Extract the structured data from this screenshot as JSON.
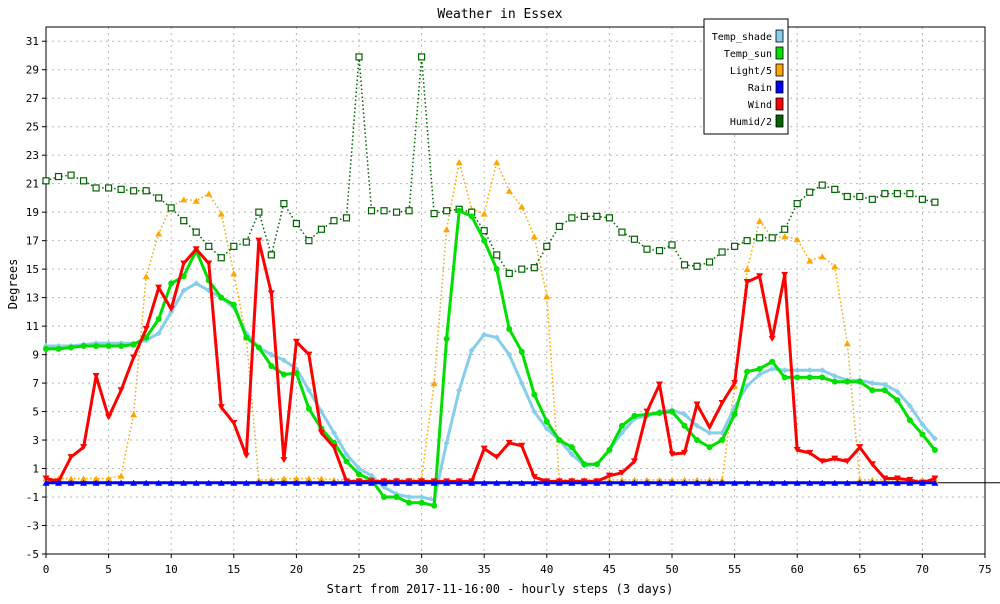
{
  "chart_data": {
    "type": "line",
    "title": "Weather in Essex",
    "xlabel": "Start from 2017-11-16:00 - hourly steps (3 days)",
    "ylabel": "Degrees",
    "xlim": [
      0,
      75
    ],
    "ylim": [
      -5,
      32
    ],
    "xticks": [
      "0",
      "5",
      "10",
      "15",
      "20",
      "25",
      "30",
      "35",
      "40",
      "45",
      "50",
      "55",
      "60",
      "65",
      "70",
      "75"
    ],
    "yticks": [
      "-5",
      "-3",
      "-1",
      "1",
      "3",
      "5",
      "7",
      "9",
      "11",
      "13",
      "15",
      "17",
      "19",
      "21",
      "23",
      "25",
      "27",
      "29",
      "31"
    ],
    "grid": true,
    "legend_position": "top-right",
    "series": [
      {
        "name": "Temp_shade",
        "color": "#87ceeb",
        "style": "solid",
        "marker": "diamond",
        "values": [
          9.6,
          9.6,
          9.6,
          9.7,
          9.8,
          9.8,
          9.8,
          9.8,
          10.0,
          10.5,
          12.0,
          13.5,
          14.0,
          13.5,
          13.0,
          12.3,
          10.5,
          9.5,
          9.0,
          8.6,
          8.0,
          6.5,
          5.0,
          3.5,
          2.0,
          1.0,
          0.5,
          -0.3,
          -0.8,
          -1.0,
          -1.0,
          -1.2,
          2.8,
          6.5,
          9.3,
          10.4,
          10.2,
          9.0,
          7.0,
          5.0,
          3.8,
          3.0,
          2.0,
          1.2,
          1.3,
          2.3,
          3.5,
          4.5,
          4.7,
          5.0,
          5.1,
          4.8,
          4.0,
          3.5,
          3.5,
          5.3,
          6.8,
          7.6,
          8.0,
          7.9,
          7.9,
          7.9,
          7.9,
          7.5,
          7.2,
          7.2,
          7.0,
          6.9,
          6.4,
          5.4,
          4.1,
          3.1
        ]
      },
      {
        "name": "Temp_sun",
        "color": "#00e000",
        "style": "solid",
        "marker": "circle",
        "values": [
          9.4,
          9.4,
          9.5,
          9.6,
          9.6,
          9.6,
          9.6,
          9.7,
          10.2,
          11.5,
          14.0,
          14.5,
          16.3,
          14.2,
          13.0,
          12.5,
          10.2,
          9.5,
          8.2,
          7.6,
          7.7,
          5.2,
          3.8,
          2.8,
          1.5,
          0.6,
          0.2,
          -1.0,
          -1.0,
          -1.4,
          -1.4,
          -1.6,
          10.1,
          19.1,
          18.7,
          17.0,
          15.0,
          10.8,
          9.2,
          6.2,
          4.3,
          3.0,
          2.5,
          1.3,
          1.3,
          2.3,
          4.0,
          4.7,
          4.8,
          4.9,
          5.0,
          4.0,
          3.0,
          2.5,
          3.0,
          4.8,
          7.8,
          8.0,
          8.5,
          7.4,
          7.4,
          7.4,
          7.4,
          7.1,
          7.1,
          7.1,
          6.5,
          6.5,
          5.8,
          4.4,
          3.4,
          2.3
        ]
      },
      {
        "name": "Light/5",
        "color": "#ffa500",
        "style": "dotted",
        "marker": "triangle-up",
        "values": [
          0.3,
          0.3,
          0.3,
          0.3,
          0.3,
          0.3,
          0.5,
          4.8,
          14.5,
          17.5,
          19.4,
          19.9,
          19.8,
          20.3,
          18.9,
          14.7,
          10.2,
          0.2,
          0.2,
          0.3,
          0.3,
          0.3,
          0.3,
          0.2,
          0.2,
          0.2,
          0.2,
          0.2,
          0.2,
          0.2,
          0.3,
          7.0,
          17.8,
          22.5,
          19.2,
          18.9,
          22.5,
          20.5,
          19.4,
          17.3,
          13.1,
          0.2,
          0.2,
          0.2,
          0.2,
          0.2,
          0.2,
          0.2,
          0.2,
          0.2,
          0.2,
          0.2,
          0.2,
          0.2,
          0.2,
          6.8,
          15.0,
          18.4,
          17.2,
          17.3,
          17.1,
          15.6,
          15.9,
          15.2,
          9.8,
          0.2,
          0.2,
          0.2,
          0.2,
          0.2,
          0.2,
          0.2
        ]
      },
      {
        "name": "Rain",
        "color": "#0000ff",
        "style": "solid",
        "marker": "triangle-up",
        "values": [
          0,
          0,
          0,
          0,
          0,
          0,
          0,
          0,
          0,
          0,
          0,
          0,
          0,
          0,
          0,
          0,
          0,
          0,
          0,
          0,
          0,
          0,
          0,
          0,
          0,
          0,
          0,
          0,
          0,
          0,
          0,
          0,
          0,
          0,
          0,
          0,
          0,
          0,
          0,
          0,
          0,
          0,
          0,
          0,
          0,
          0,
          0,
          0,
          0,
          0,
          0,
          0,
          0,
          0,
          0,
          0,
          0,
          0,
          0,
          0,
          0,
          0,
          0,
          0,
          0,
          0,
          0,
          0,
          0,
          0,
          0,
          0
        ]
      },
      {
        "name": "Wind",
        "color": "#ff0000",
        "style": "solid",
        "marker": "triangle-down",
        "values": [
          0.3,
          0.1,
          1.8,
          2.5,
          7.5,
          4.6,
          6.5,
          8.8,
          10.8,
          13.7,
          12.2,
          15.4,
          16.4,
          15.4,
          5.3,
          4.2,
          1.9,
          17.0,
          13.3,
          1.6,
          9.9,
          9.0,
          3.5,
          2.5,
          0.1,
          0.1,
          0.1,
          0.1,
          0.1,
          0.1,
          0.1,
          0.1,
          0.1,
          0.1,
          0.1,
          2.4,
          1.8,
          2.8,
          2.6,
          0.4,
          0.1,
          0.1,
          0.1,
          0.1,
          0.1,
          0.5,
          0.7,
          1.5,
          5.0,
          6.9,
          2.0,
          2.1,
          5.5,
          3.9,
          5.6,
          7.0,
          14.1,
          14.5,
          10.1,
          14.6,
          2.3,
          2.1,
          1.5,
          1.7,
          1.5,
          2.5,
          1.3,
          0.3,
          0.3,
          0.2,
          0.0,
          0.3
        ]
      },
      {
        "name": "Humid/2",
        "color": "#006400",
        "style": "dotted",
        "marker": "square",
        "values": [
          21.2,
          21.5,
          21.6,
          21.2,
          20.7,
          20.7,
          20.6,
          20.5,
          20.5,
          20.0,
          19.3,
          18.4,
          17.6,
          16.6,
          15.8,
          16.6,
          16.9,
          19.0,
          16.0,
          19.6,
          18.2,
          17.0,
          17.8,
          18.4,
          18.6,
          29.9,
          19.1,
          19.1,
          19.0,
          19.1,
          29.9,
          18.9,
          19.1,
          19.2,
          19.0,
          17.7,
          16.0,
          14.7,
          15.0,
          15.1,
          16.6,
          18.0,
          18.6,
          18.7,
          18.7,
          18.6,
          17.6,
          17.1,
          16.4,
          16.3,
          16.7,
          15.3,
          15.2,
          15.5,
          16.2,
          16.6,
          17.0,
          17.2,
          17.2,
          17.8,
          19.6,
          20.4,
          20.9,
          20.6,
          20.1,
          20.1,
          19.9,
          20.3,
          20.3,
          20.3,
          19.9,
          19.7
        ]
      }
    ]
  }
}
